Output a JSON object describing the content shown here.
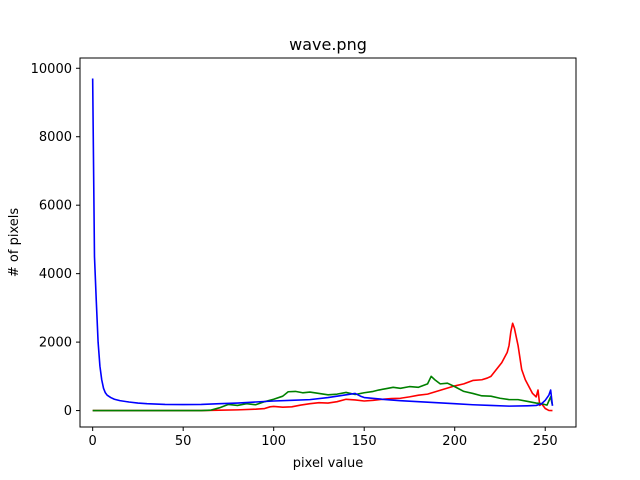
{
  "chart_data": {
    "type": "line",
    "title": "wave.png",
    "xlabel": "pixel value",
    "ylabel": "# of pixels",
    "xlim": [
      -7,
      267
    ],
    "ylim": [
      -480,
      10300
    ],
    "xticks": [
      0,
      50,
      100,
      150,
      200,
      250
    ],
    "yticks": [
      0,
      2000,
      4000,
      6000,
      8000,
      10000
    ],
    "grid": false,
    "legend": "none",
    "series": [
      {
        "color": "#ff0000",
        "points": [
          [
            0,
            0
          ],
          [
            60,
            0
          ],
          [
            70,
            10
          ],
          [
            80,
            20
          ],
          [
            90,
            40
          ],
          [
            95,
            60
          ],
          [
            98,
            110
          ],
          [
            100,
            120
          ],
          [
            105,
            100
          ],
          [
            110,
            110
          ],
          [
            115,
            160
          ],
          [
            120,
            200
          ],
          [
            125,
            230
          ],
          [
            130,
            220
          ],
          [
            135,
            260
          ],
          [
            140,
            330
          ],
          [
            145,
            310
          ],
          [
            150,
            280
          ],
          [
            155,
            300
          ],
          [
            160,
            330
          ],
          [
            165,
            350
          ],
          [
            170,
            360
          ],
          [
            175,
            400
          ],
          [
            180,
            450
          ],
          [
            185,
            480
          ],
          [
            190,
            560
          ],
          [
            195,
            640
          ],
          [
            200,
            720
          ],
          [
            205,
            780
          ],
          [
            210,
            880
          ],
          [
            215,
            900
          ],
          [
            218,
            950
          ],
          [
            220,
            1000
          ],
          [
            223,
            1200
          ],
          [
            226,
            1400
          ],
          [
            229,
            1700
          ],
          [
            230,
            1900
          ],
          [
            231,
            2300
          ],
          [
            232,
            2550
          ],
          [
            233,
            2400
          ],
          [
            235,
            1900
          ],
          [
            237,
            1200
          ],
          [
            239,
            900
          ],
          [
            241,
            700
          ],
          [
            243,
            500
          ],
          [
            245,
            400
          ],
          [
            246,
            600
          ],
          [
            247,
            150
          ],
          [
            248,
            200
          ],
          [
            250,
            60
          ],
          [
            252,
            5
          ],
          [
            254,
            0
          ]
        ]
      },
      {
        "color": "#008000",
        "points": [
          [
            0,
            0
          ],
          [
            60,
            0
          ],
          [
            65,
            10
          ],
          [
            70,
            80
          ],
          [
            75,
            180
          ],
          [
            80,
            150
          ],
          [
            85,
            200
          ],
          [
            90,
            170
          ],
          [
            95,
            260
          ],
          [
            100,
            330
          ],
          [
            105,
            420
          ],
          [
            108,
            550
          ],
          [
            112,
            560
          ],
          [
            116,
            520
          ],
          [
            120,
            540
          ],
          [
            125,
            500
          ],
          [
            130,
            460
          ],
          [
            135,
            480
          ],
          [
            140,
            530
          ],
          [
            145,
            470
          ],
          [
            150,
            520
          ],
          [
            155,
            560
          ],
          [
            158,
            600
          ],
          [
            162,
            640
          ],
          [
            166,
            680
          ],
          [
            170,
            650
          ],
          [
            175,
            700
          ],
          [
            180,
            680
          ],
          [
            185,
            780
          ],
          [
            187,
            1000
          ],
          [
            189,
            900
          ],
          [
            192,
            780
          ],
          [
            196,
            800
          ],
          [
            200,
            700
          ],
          [
            205,
            560
          ],
          [
            210,
            500
          ],
          [
            215,
            430
          ],
          [
            220,
            420
          ],
          [
            225,
            360
          ],
          [
            230,
            320
          ],
          [
            235,
            320
          ],
          [
            240,
            270
          ],
          [
            245,
            220
          ],
          [
            248,
            200
          ],
          [
            251,
            160
          ],
          [
            253,
            400
          ],
          [
            254,
            150
          ]
        ]
      },
      {
        "color": "#0000ff",
        "points": [
          [
            0,
            9700
          ],
          [
            1,
            4500
          ],
          [
            2,
            3200
          ],
          [
            3,
            2000
          ],
          [
            4,
            1300
          ],
          [
            5,
            900
          ],
          [
            6,
            650
          ],
          [
            7,
            520
          ],
          [
            8,
            450
          ],
          [
            10,
            380
          ],
          [
            12,
            330
          ],
          [
            15,
            290
          ],
          [
            20,
            250
          ],
          [
            25,
            220
          ],
          [
            30,
            200
          ],
          [
            40,
            180
          ],
          [
            50,
            175
          ],
          [
            60,
            180
          ],
          [
            70,
            200
          ],
          [
            80,
            220
          ],
          [
            90,
            250
          ],
          [
            100,
            280
          ],
          [
            110,
            300
          ],
          [
            120,
            320
          ],
          [
            130,
            380
          ],
          [
            140,
            460
          ],
          [
            145,
            500
          ],
          [
            148,
            420
          ],
          [
            150,
            380
          ],
          [
            160,
            330
          ],
          [
            170,
            290
          ],
          [
            180,
            260
          ],
          [
            190,
            230
          ],
          [
            200,
            200
          ],
          [
            210,
            170
          ],
          [
            220,
            150
          ],
          [
            230,
            130
          ],
          [
            240,
            140
          ],
          [
            245,
            150
          ],
          [
            248,
            200
          ],
          [
            250,
            300
          ],
          [
            252,
            450
          ],
          [
            253,
            600
          ],
          [
            254,
            140
          ]
        ]
      }
    ]
  }
}
